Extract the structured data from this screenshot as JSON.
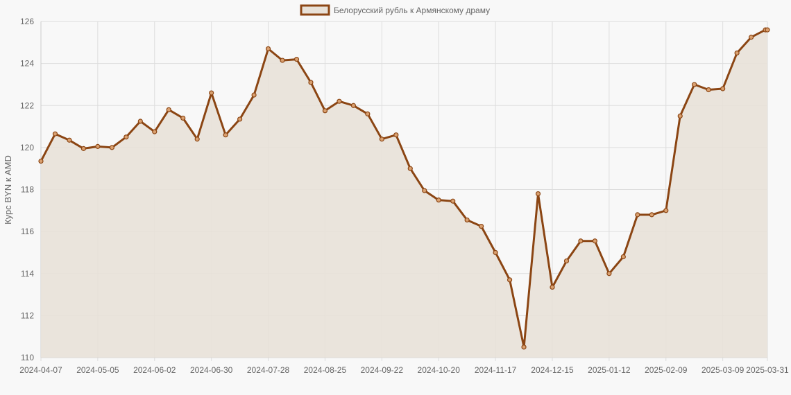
{
  "colors": {
    "line": "#8b4513",
    "fill": "#e8e1d8",
    "grid": "#dddddd",
    "background": "#f8f8f8",
    "text": "#666666"
  },
  "chart_data": {
    "type": "area",
    "title": "",
    "xlabel": "",
    "ylabel": "Курс BYN к AMD",
    "ylim": [
      110,
      126
    ],
    "yticks": [
      110,
      112,
      114,
      116,
      118,
      120,
      122,
      124,
      126
    ],
    "xtick_labels": [
      "2024-04-07",
      "2024-05-05",
      "2024-06-02",
      "2024-06-30",
      "2024-07-28",
      "2024-08-25",
      "2024-09-22",
      "2024-10-20",
      "2024-11-17",
      "2024-12-15",
      "2025-01-12",
      "2025-02-09",
      "2025-03-09",
      "2025-03-31"
    ],
    "legend_position": "top-center",
    "grid": true,
    "series": [
      {
        "name": "Белорусский рубль к Армянскому драму",
        "x": [
          "2024-04-07",
          "2024-04-14",
          "2024-04-21",
          "2024-04-28",
          "2024-05-05",
          "2024-05-12",
          "2024-05-19",
          "2024-05-26",
          "2024-06-02",
          "2024-06-09",
          "2024-06-16",
          "2024-06-23",
          "2024-06-30",
          "2024-07-07",
          "2024-07-14",
          "2024-07-21",
          "2024-07-28",
          "2024-08-04",
          "2024-08-11",
          "2024-08-18",
          "2024-08-25",
          "2024-09-01",
          "2024-09-08",
          "2024-09-15",
          "2024-09-22",
          "2024-09-29",
          "2024-10-06",
          "2024-10-13",
          "2024-10-20",
          "2024-10-27",
          "2024-11-03",
          "2024-11-10",
          "2024-11-17",
          "2024-11-24",
          "2024-12-01",
          "2024-12-08",
          "2024-12-15",
          "2024-12-22",
          "2024-12-29",
          "2025-01-05",
          "2025-01-12",
          "2025-01-19",
          "2025-01-26",
          "2025-02-02",
          "2025-02-09",
          "2025-02-16",
          "2025-02-23",
          "2025-03-02",
          "2025-03-09",
          "2025-03-16",
          "2025-03-23",
          "2025-03-30",
          "2025-03-31"
        ],
        "values": [
          119.35,
          120.65,
          120.35,
          119.95,
          120.05,
          120.0,
          120.5,
          121.25,
          120.75,
          121.8,
          121.4,
          120.4,
          122.6,
          120.6,
          121.35,
          122.5,
          124.7,
          124.15,
          124.2,
          123.1,
          121.75,
          122.2,
          122.0,
          121.6,
          120.4,
          120.6,
          119.0,
          117.95,
          117.5,
          117.45,
          116.55,
          116.25,
          115.0,
          113.7,
          110.5,
          117.8,
          113.35,
          114.6,
          115.55,
          115.55,
          114.0,
          114.8,
          116.8,
          116.8,
          117.0,
          121.5,
          123.0,
          122.75,
          122.8,
          124.5,
          125.25,
          125.6,
          125.6
        ]
      }
    ]
  }
}
